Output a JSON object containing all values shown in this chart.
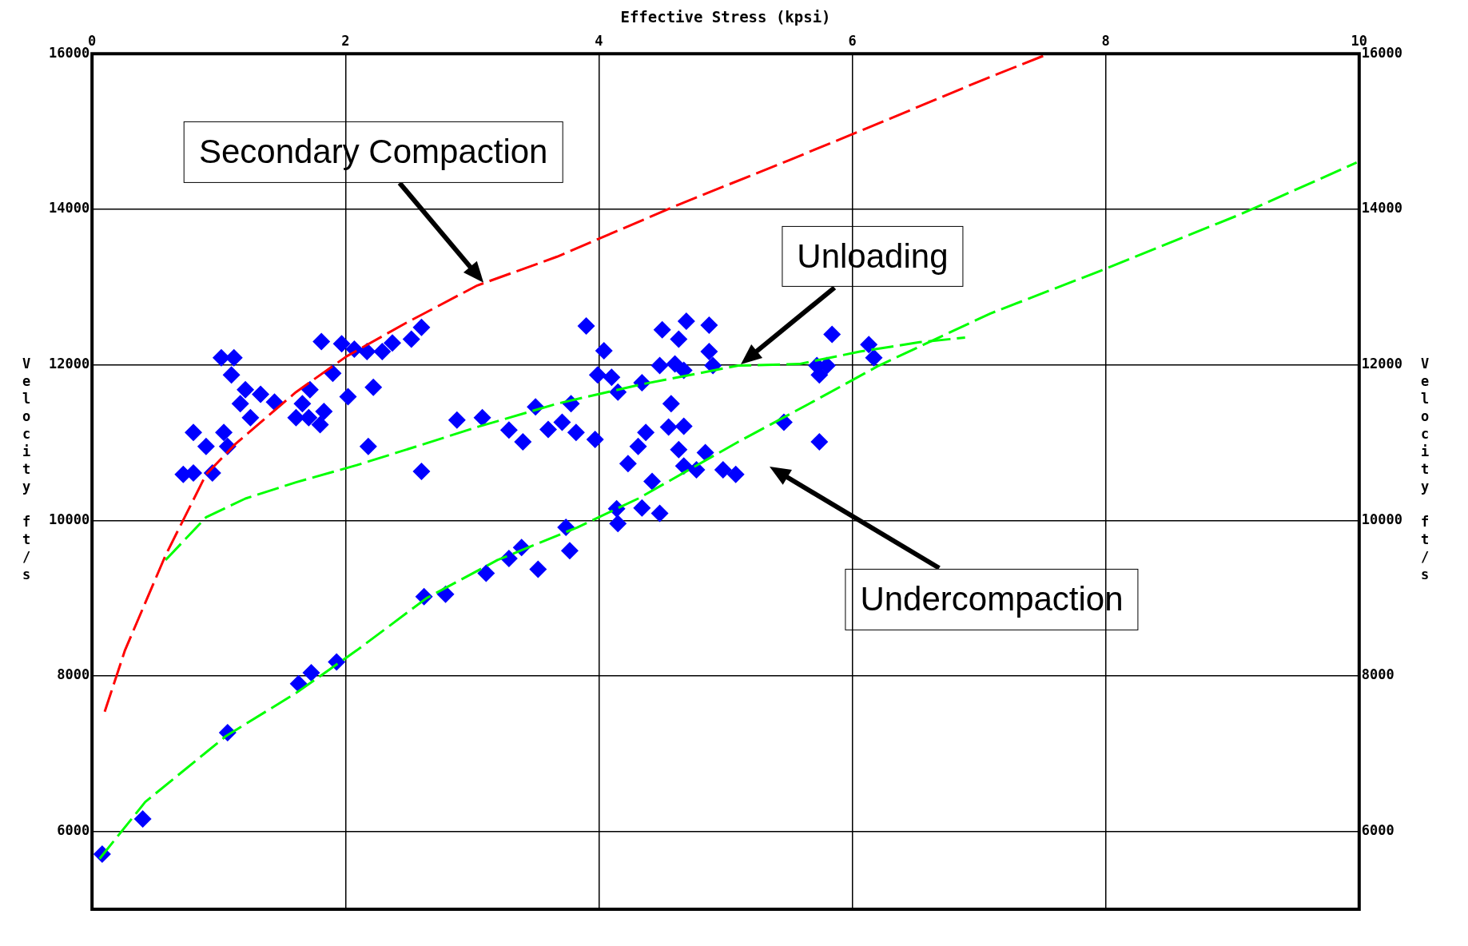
{
  "chart_data": {
    "type": "scatter",
    "xlabel": "Effective Stress (kpsi)",
    "ylabel": "Velocity ft/s",
    "y2label": "Velocity ft/s",
    "xlim": [
      0,
      10
    ],
    "xticks": [
      0,
      2,
      4,
      6,
      8,
      10
    ],
    "ylim": [
      5000,
      16000
    ],
    "yticks": [
      6000,
      8000,
      10000,
      12000,
      14000,
      16000
    ],
    "y2lim": [
      5000,
      16000
    ],
    "y2ticks": [
      6000,
      8000,
      10000,
      12000,
      14000,
      16000
    ],
    "grid": true,
    "annotations": [
      "Secondary Compaction",
      "Unloading",
      "Undercompaction"
    ],
    "series": [
      {
        "color": "#0000ff",
        "marker": "diamond",
        "x": [
          0.08,
          0.4,
          1.07,
          1.63,
          1.73,
          1.93,
          2.62,
          2.79,
          3.11,
          3.29,
          3.39,
          3.52,
          3.74,
          3.77,
          4.14,
          4.15,
          4.34,
          4.48,
          4.42,
          4.23,
          4.31,
          4.37,
          4.55,
          4.67,
          4.57,
          4.63,
          4.67,
          4.77,
          4.84,
          4.98,
          5.08,
          5.46,
          5.74,
          2.88,
          3.08,
          3.29,
          3.4,
          3.5,
          3.6,
          3.71,
          3.78,
          3.82,
          3.97,
          3.9,
          4.04,
          3.99,
          4.1,
          4.15,
          4.34,
          4.5,
          4.63,
          4.69,
          4.87,
          4.87,
          4.48,
          4.6,
          4.67,
          4.9,
          5.74,
          5.8,
          5.84,
          6.13,
          6.17,
          5.72,
          0.72,
          0.8,
          0.8,
          0.9,
          0.95,
          1.07,
          1.04,
          1.02,
          1.12,
          1.1,
          1.17,
          1.21,
          1.25,
          1.33,
          1.44,
          1.66,
          1.71,
          1.72,
          1.8,
          1.83,
          1.81,
          1.9,
          1.97,
          2.02,
          2.07,
          2.17,
          2.22,
          2.18,
          2.29,
          2.37,
          2.52,
          2.6,
          2.6,
          1.61
        ],
        "values": [
          5710,
          6160,
          7270,
          7900,
          8040,
          8180,
          9020,
          9050,
          9320,
          9510,
          9650,
          9370,
          9910,
          9610,
          10150,
          9960,
          10160,
          10090,
          10500,
          10730,
          10950,
          11130,
          11200,
          11210,
          11500,
          10910,
          10700,
          10650,
          10870,
          10650,
          10590,
          11260,
          11010,
          11290,
          11320,
          11160,
          11010,
          11460,
          11170,
          11260,
          11500,
          11130,
          11040,
          12500,
          12180,
          11870,
          11840,
          11650,
          11770,
          12450,
          12330,
          12560,
          12510,
          12170,
          11990,
          12010,
          11930,
          11990,
          11870,
          11990,
          12390,
          12260,
          12090,
          11990,
          10590,
          10610,
          11130,
          10950,
          10610,
          10950,
          11130,
          12090,
          12090,
          11870,
          11500,
          11680,
          11320,
          11620,
          11520,
          11500,
          11320,
          11680,
          11230,
          11400,
          12300,
          11890,
          12270,
          11590,
          12200,
          12170,
          11710,
          10950,
          12170,
          12280,
          12330,
          12480,
          10630,
          11320
        ]
      },
      {
        "type": "line",
        "color": "#ff0000",
        "marker": "none",
        "line_style": "dashed",
        "x": [
          0.1,
          0.26,
          0.58,
          0.9,
          1.13,
          1.61,
          2.01,
          2.48,
          3.04,
          3.67,
          4.63,
          5.5,
          6.29,
          7.01,
          7.55
        ],
        "values": [
          7540,
          8330,
          9550,
          10590,
          10980,
          11650,
          12110,
          12540,
          13020,
          13390,
          14060,
          14630,
          15160,
          15650,
          16000
        ]
      },
      {
        "type": "line",
        "color": "#00ff00",
        "marker": "none",
        "line_style": "dashed",
        "x": [
          0.06,
          0.42,
          1.06,
          1.61,
          2.09,
          2.64,
          3.2,
          3.83,
          4.31,
          5.1,
          5.66,
          6.21,
          7.09,
          7.96,
          9.07,
          9.98
        ],
        "values": [
          5650,
          6380,
          7230,
          7780,
          8330,
          9000,
          9490,
          9910,
          10280,
          11010,
          11500,
          11990,
          12660,
          13210,
          13940,
          14600
        ]
      },
      {
        "type": "line",
        "color": "#00ff00",
        "marker": "none",
        "line_style": "dashed",
        "x": [
          0.58,
          0.9,
          1.21,
          1.61,
          2.09,
          2.56,
          3.04,
          3.67,
          4.31,
          5.1,
          5.58,
          6.06,
          6.53,
          6.89
        ],
        "values": [
          9490,
          10040,
          10280,
          10490,
          10710,
          10950,
          11200,
          11500,
          11740,
          11990,
          12010,
          12170,
          12290,
          12350
        ]
      }
    ]
  }
}
